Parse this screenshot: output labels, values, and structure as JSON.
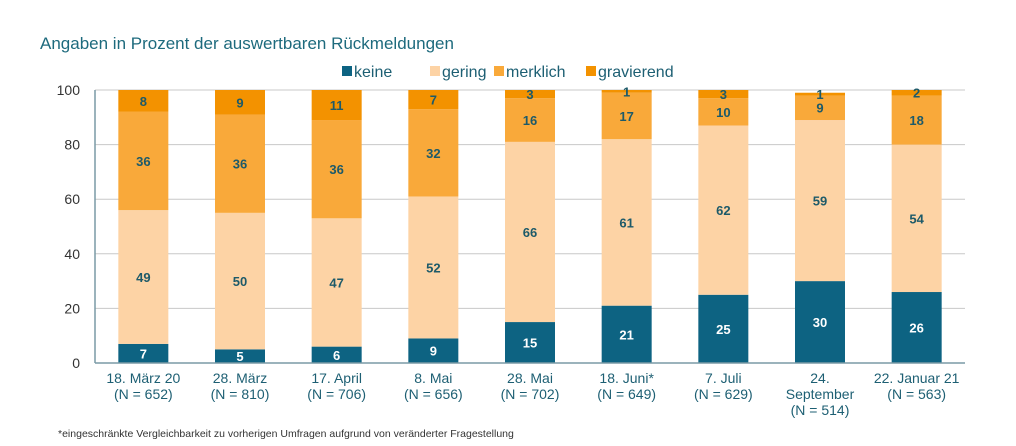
{
  "chart_data": {
    "type": "stacked-bar",
    "title": "Angaben in Prozent der auswertbaren Rückmeldungen",
    "footnote": "*eingeschränkte Vergleichbarkeit zu vorherigen Umfragen aufgrund von veränderter Fragestellung",
    "ylim": [
      0,
      100
    ],
    "yticks": [
      0,
      20,
      40,
      60,
      80,
      100
    ],
    "grid": true,
    "legend": "top",
    "categories": [
      [
        "18. März 20",
        "(N = 652)"
      ],
      [
        "28. März",
        "(N = 810)"
      ],
      [
        "17. April",
        "(N = 706)"
      ],
      [
        "8. Mai",
        "(N = 656)"
      ],
      [
        "28. Mai",
        "(N = 702)"
      ],
      [
        "18. Juni*",
        "(N = 649)"
      ],
      [
        "7. Juli",
        "(N = 629)"
      ],
      [
        "24.",
        "September",
        "(N = 514)"
      ],
      [
        "22. Januar 21",
        "(N = 563)"
      ]
    ],
    "series": [
      {
        "name": "keine",
        "color": "#0d6382",
        "label_color": "#ffffff",
        "values": [
          7,
          5,
          6,
          9,
          15,
          21,
          25,
          30,
          26
        ]
      },
      {
        "name": "gering",
        "color": "#fdd3a5",
        "label_color": "#1d5a69",
        "values": [
          49,
          50,
          47,
          52,
          66,
          61,
          62,
          59,
          54
        ]
      },
      {
        "name": "merklich",
        "color": "#f9a93a",
        "label_color": "#1d5a69",
        "values": [
          36,
          36,
          36,
          32,
          16,
          17,
          10,
          9,
          18
        ]
      },
      {
        "name": "gravierend",
        "color": "#f39200",
        "label_color": "#1d5a69",
        "values": [
          8,
          9,
          11,
          7,
          3,
          1,
          3,
          1,
          2
        ]
      }
    ]
  }
}
